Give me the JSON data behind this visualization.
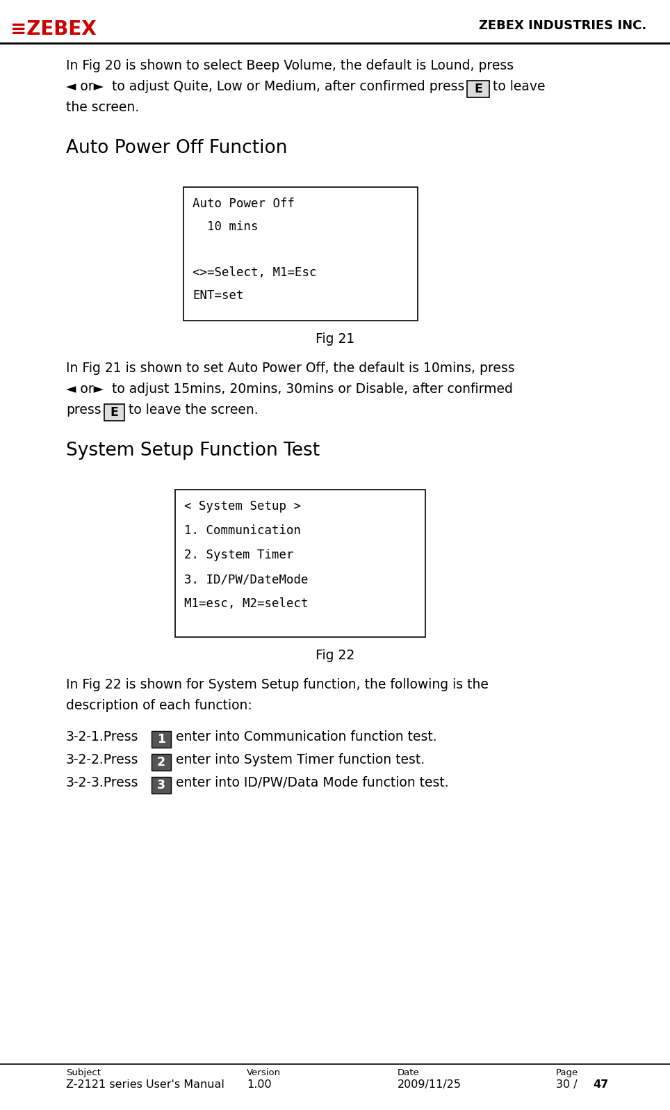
{
  "page_width": 9.64,
  "page_height": 15.96,
  "bg_color": "#ffffff",
  "header_company": "ZEBEX INDUSTRIES INC.",
  "header_logo_text": "ZEBEX",
  "section_title_1": "Auto Power Off Function",
  "fig21_lines": [
    "Auto Power Off",
    "  10 mins",
    "",
    "<>=Select, M1=Esc",
    "ENT=set"
  ],
  "fig21_caption": "Fig 21",
  "section_title_2": "System Setup Function Test",
  "fig22_lines": [
    "< System Setup >",
    "1. Communication",
    "2. System Timer",
    "3. ID/PW/DateMode",
    "M1=esc, M2=select"
  ],
  "fig22_caption": "Fig 22",
  "footer_labels": [
    "Subject",
    "Version",
    "Date",
    "Page"
  ],
  "footer_values": [
    "Z-2121 series User's Manual",
    "1.00",
    "2009/11/25",
    "30 / 47"
  ],
  "body_font_size": 13.5,
  "section_font_size": 19,
  "mono_font_size": 12.5,
  "caption_font_size": 13.5,
  "footer_label_size": 9.5,
  "footer_value_size": 11.5
}
